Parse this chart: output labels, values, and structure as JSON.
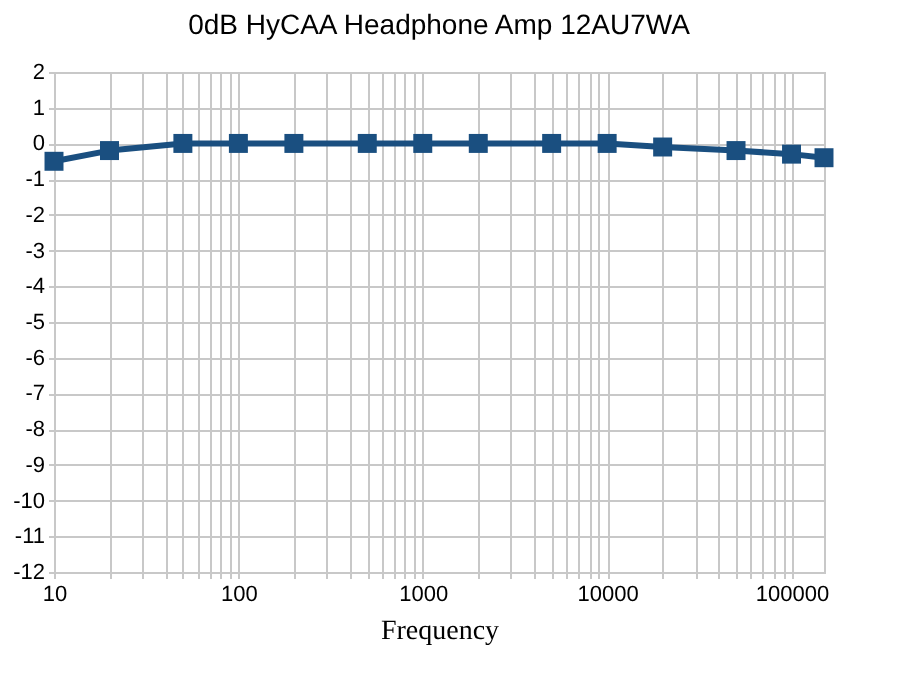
{
  "chart_data": {
    "type": "line",
    "title": "0dB HyCAA Headphone Amp 12AU7WA",
    "xlabel": "Frequency",
    "x": [
      10,
      20,
      50,
      100,
      200,
      500,
      1000,
      2000,
      5000,
      10000,
      20000,
      50000,
      100000,
      150000
    ],
    "series": [
      {
        "color": "#1a4f80",
        "values": [
          -0.5,
          -0.2,
          0,
          0,
          0,
          0,
          0,
          0,
          0,
          0,
          -0.1,
          -0.2,
          -0.3,
          -0.4
        ]
      }
    ],
    "log": "x",
    "xlim": [
      10,
      150000
    ],
    "ylim": [
      -12,
      2
    ],
    "xticks": [
      10,
      {
        "value": 20,
        "label": null
      },
      {
        "value": 30,
        "label": null
      },
      {
        "value": 40,
        "label": null
      },
      {
        "value": 50,
        "label": null
      },
      {
        "value": 60,
        "label": null
      },
      {
        "value": 70,
        "label": null
      },
      {
        "value": 80,
        "label": null
      },
      {
        "value": 90,
        "label": null
      },
      100,
      {
        "value": 200,
        "label": null
      },
      {
        "value": 300,
        "label": null
      },
      {
        "value": 400,
        "label": null
      },
      {
        "value": 500,
        "label": null
      },
      {
        "value": 600,
        "label": null
      },
      {
        "value": 700,
        "label": null
      },
      {
        "value": 800,
        "label": null
      },
      {
        "value": 900,
        "label": null
      },
      1000,
      {
        "value": 2000,
        "label": null
      },
      {
        "value": 3000,
        "label": null
      },
      {
        "value": 4000,
        "label": null
      },
      {
        "value": 5000,
        "label": null
      },
      {
        "value": 6000,
        "label": null
      },
      {
        "value": 7000,
        "label": null
      },
      {
        "value": 8000,
        "label": null
      },
      {
        "value": 9000,
        "label": null
      },
      10000,
      {
        "value": 20000,
        "label": null
      },
      {
        "value": 30000,
        "label": null
      },
      {
        "value": 40000,
        "label": null
      },
      {
        "value": 50000,
        "label": null
      },
      {
        "value": 60000,
        "label": null
      },
      {
        "value": 70000,
        "label": null
      },
      {
        "value": 80000,
        "label": null
      },
      {
        "value": 90000,
        "label": null
      },
      100000
    ],
    "yticks": [
      -12,
      -11,
      -10,
      -9,
      -8,
      -7,
      -6,
      -5,
      -4,
      -3,
      -2,
      -1,
      0,
      1,
      2
    ],
    "grid": true,
    "marker": "square",
    "line_style": "solid"
  }
}
